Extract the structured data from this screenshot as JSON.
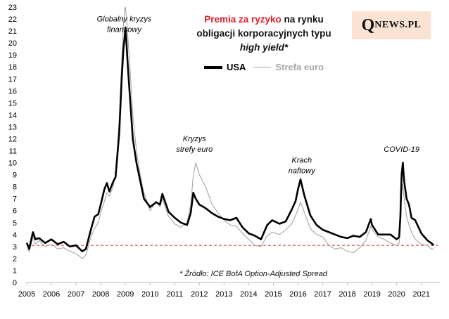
{
  "chart_data": {
    "type": "line",
    "title_parts": {
      "highlight": "Premia za ryzyko",
      "rest_line1": "na rynku",
      "line2": "obligacji korporacyjnych typu",
      "line3": "high yield*"
    },
    "xlabel": "",
    "ylabel": "",
    "xlim": [
      2005,
      2021.75
    ],
    "ylim": [
      0,
      23
    ],
    "x_ticks": [
      2005,
      2006,
      2007,
      2008,
      2009,
      2010,
      2011,
      2012,
      2013,
      2014,
      2015,
      2016,
      2017,
      2018,
      2019,
      2020,
      2021
    ],
    "y_ticks": [
      0,
      1,
      2,
      3,
      4,
      5,
      6,
      7,
      8,
      9,
      10,
      11,
      12,
      13,
      14,
      15,
      16,
      17,
      18,
      19,
      20,
      21,
      22,
      23
    ],
    "reference_line": {
      "value": 3.1,
      "style": "dashed",
      "color": "#e05050"
    },
    "series": [
      {
        "name": "USA",
        "color": "#000000",
        "x": [
          2005.0,
          2005.1,
          2005.25,
          2005.35,
          2005.5,
          2005.75,
          2006.0,
          2006.25,
          2006.5,
          2006.75,
          2007.0,
          2007.25,
          2007.4,
          2007.5,
          2007.6,
          2007.75,
          2007.9,
          2008.0,
          2008.15,
          2008.25,
          2008.35,
          2008.5,
          2008.6,
          2008.75,
          2008.85,
          2008.92,
          2008.97,
          2009.0,
          2009.05,
          2009.1,
          2009.2,
          2009.3,
          2009.45,
          2009.6,
          2009.75,
          2010.0,
          2010.25,
          2010.4,
          2010.5,
          2010.75,
          2011.0,
          2011.25,
          2011.5,
          2011.65,
          2011.75,
          2011.85,
          2012.0,
          2012.25,
          2012.5,
          2012.75,
          2013.0,
          2013.25,
          2013.5,
          2013.75,
          2014.0,
          2014.25,
          2014.5,
          2014.75,
          2014.95,
          2015.25,
          2015.5,
          2015.75,
          2015.9,
          2016.0,
          2016.1,
          2016.25,
          2016.5,
          2016.75,
          2017.0,
          2017.25,
          2017.5,
          2017.75,
          2018.0,
          2018.25,
          2018.5,
          2018.75,
          2018.95,
          2019.0,
          2019.25,
          2019.5,
          2019.75,
          2020.0,
          2020.1,
          2020.15,
          2020.2,
          2020.25,
          2020.3,
          2020.4,
          2020.5,
          2020.6,
          2020.75,
          2021.0,
          2021.25,
          2021.4,
          2021.5
        ],
        "values": [
          3.3,
          2.8,
          4.2,
          3.6,
          3.7,
          3.3,
          3.6,
          3.2,
          3.4,
          3.0,
          3.1,
          2.6,
          2.8,
          3.6,
          4.4,
          5.5,
          5.7,
          6.5,
          7.8,
          8.3,
          7.6,
          8.4,
          8.8,
          12.5,
          17.0,
          19.5,
          20.5,
          21.3,
          19.8,
          18.0,
          15.0,
          12.0,
          10.0,
          8.5,
          7.0,
          6.3,
          6.7,
          6.5,
          7.4,
          5.9,
          5.4,
          5.0,
          4.8,
          5.8,
          7.5,
          7.0,
          6.5,
          6.2,
          5.8,
          5.5,
          5.3,
          5.2,
          5.4,
          4.6,
          4.1,
          3.9,
          3.6,
          4.8,
          5.2,
          4.9,
          5.1,
          6.1,
          6.8,
          7.8,
          8.6,
          7.3,
          5.6,
          4.8,
          4.4,
          4.2,
          4.0,
          3.8,
          3.7,
          3.9,
          3.8,
          4.2,
          5.3,
          4.8,
          4.0,
          4.0,
          4.0,
          3.6,
          3.8,
          5.5,
          9.0,
          10.0,
          8.5,
          7.0,
          6.5,
          5.4,
          5.2,
          4.1,
          3.5,
          3.3,
          3.1
        ]
      },
      {
        "name": "Strefa euro",
        "color": "#a6a6a6",
        "x": [
          2005.0,
          2005.1,
          2005.25,
          2005.35,
          2005.5,
          2005.75,
          2006.0,
          2006.25,
          2006.5,
          2006.75,
          2007.0,
          2007.25,
          2007.4,
          2007.5,
          2007.6,
          2007.75,
          2007.9,
          2008.0,
          2008.15,
          2008.25,
          2008.35,
          2008.5,
          2008.6,
          2008.75,
          2008.85,
          2008.92,
          2008.97,
          2009.0,
          2009.05,
          2009.1,
          2009.2,
          2009.3,
          2009.45,
          2009.6,
          2009.75,
          2010.0,
          2010.25,
          2010.4,
          2010.5,
          2010.75,
          2011.0,
          2011.25,
          2011.5,
          2011.65,
          2011.75,
          2011.85,
          2012.0,
          2012.25,
          2012.5,
          2012.75,
          2013.0,
          2013.25,
          2013.5,
          2013.75,
          2014.0,
          2014.25,
          2014.5,
          2014.75,
          2014.95,
          2015.25,
          2015.5,
          2015.75,
          2015.9,
          2016.0,
          2016.1,
          2016.25,
          2016.5,
          2016.75,
          2017.0,
          2017.25,
          2017.5,
          2017.75,
          2018.0,
          2018.25,
          2018.5,
          2018.75,
          2018.95,
          2019.0,
          2019.25,
          2019.5,
          2019.75,
          2020.0,
          2020.1,
          2020.15,
          2020.2,
          2020.25,
          2020.3,
          2020.4,
          2020.5,
          2020.6,
          2020.75,
          2021.0,
          2021.25,
          2021.4,
          2021.5
        ],
        "values": [
          2.8,
          2.6,
          3.8,
          3.2,
          3.5,
          3.0,
          3.2,
          2.8,
          2.9,
          2.6,
          2.4,
          2.0,
          2.3,
          3.0,
          3.8,
          4.5,
          5.0,
          5.8,
          6.8,
          7.5,
          7.2,
          8.0,
          9.0,
          13.5,
          18.5,
          21.5,
          22.8,
          23.0,
          22.0,
          20.5,
          17.5,
          14.0,
          11.0,
          9.0,
          7.5,
          6.0,
          6.8,
          6.3,
          7.0,
          5.5,
          4.9,
          4.6,
          5.0,
          6.5,
          8.9,
          10.0,
          9.0,
          8.0,
          6.6,
          5.8,
          5.2,
          4.8,
          4.7,
          4.1,
          3.6,
          3.1,
          3.0,
          3.9,
          4.2,
          4.0,
          4.4,
          4.9,
          5.6,
          6.1,
          6.7,
          5.9,
          4.5,
          4.0,
          3.8,
          3.1,
          2.8,
          2.9,
          2.6,
          2.5,
          2.9,
          3.5,
          4.7,
          4.4,
          3.8,
          3.6,
          3.3,
          3.1,
          3.3,
          5.0,
          7.5,
          8.2,
          7.0,
          5.5,
          4.8,
          4.2,
          3.6,
          3.2,
          3.1,
          2.8,
          2.8
        ]
      }
    ],
    "annotations": [
      {
        "lines": [
          "Globalny kryzys",
          "finansowy"
        ],
        "x": 2008.95,
        "y": 21.8
      },
      {
        "lines": [
          "Kryzys",
          "strefy  euro"
        ],
        "x": 2011.8,
        "y": 11.8
      },
      {
        "lines": [
          "Krach",
          "naftowy"
        ],
        "x": 2016.15,
        "y": 10.0
      },
      {
        "lines": [
          "COVID-19"
        ],
        "x": 2020.2,
        "y": 10.9
      }
    ],
    "source_note": "* Źródło: ICE BofA Option-Adjusted Spread"
  },
  "logo": {
    "q": "Q",
    "rest": "NEWS.PL"
  }
}
